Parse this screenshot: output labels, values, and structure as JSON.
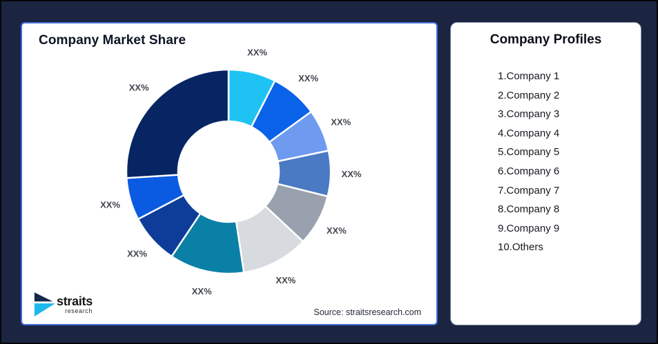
{
  "page": {
    "background_color": "#1B2441",
    "left_card_border_color": "#3F6CD8"
  },
  "left_panel": {
    "title": "Company Market Share",
    "source": "Source: straitsresearch.com",
    "logo_name": "straits",
    "logo_sub": "research",
    "logo_colors": {
      "dark": "#15284D",
      "cyan": "#1CB9EA"
    }
  },
  "right_panel": {
    "title": "Company Profiles",
    "items": [
      "1.Company 1",
      "2.Company 2",
      "3.Company 3",
      "4.Company 4",
      "5.Company 5",
      "6.Company 6",
      "7.Company 7",
      "8.Company 8",
      "9.Company 9",
      "10.Others"
    ]
  },
  "chart_data": {
    "type": "pie",
    "subtype": "donut",
    "title": "Company Market Share",
    "values_masked": true,
    "start_angle_deg": 0,
    "direction": "clockwise",
    "donut_hole_ratio": 0.49,
    "label_color": "#41464E",
    "legend_position": "none",
    "segments": [
      {
        "name": "Company 1",
        "label": "XX%",
        "value": 7.5,
        "color": "#1EC3F3"
      },
      {
        "name": "Company 2",
        "label": "XX%",
        "value": 7.5,
        "color": "#0A62E8"
      },
      {
        "name": "Company 3",
        "label": "XX%",
        "value": 6.7,
        "color": "#6E9BF0"
      },
      {
        "name": "Company 4",
        "label": "XX%",
        "value": 7.2,
        "color": "#4B7AC4"
      },
      {
        "name": "Company 5",
        "label": "XX%",
        "value": 8.1,
        "color": "#99A1AE"
      },
      {
        "name": "Company 6",
        "label": "XX%",
        "value": 10.6,
        "color": "#D7DADF"
      },
      {
        "name": "Company 7",
        "label": "XX%",
        "value": 11.8,
        "color": "#0B80A7"
      },
      {
        "name": "Company 8",
        "label": "XX%",
        "value": 7.9,
        "color": "#0E3C99"
      },
      {
        "name": "Company 9",
        "label": "XX%",
        "value": 6.7,
        "color": "#0A5BE2"
      },
      {
        "name": "Others",
        "label": "XX%",
        "value": 26.0,
        "color": "#062562"
      }
    ]
  }
}
